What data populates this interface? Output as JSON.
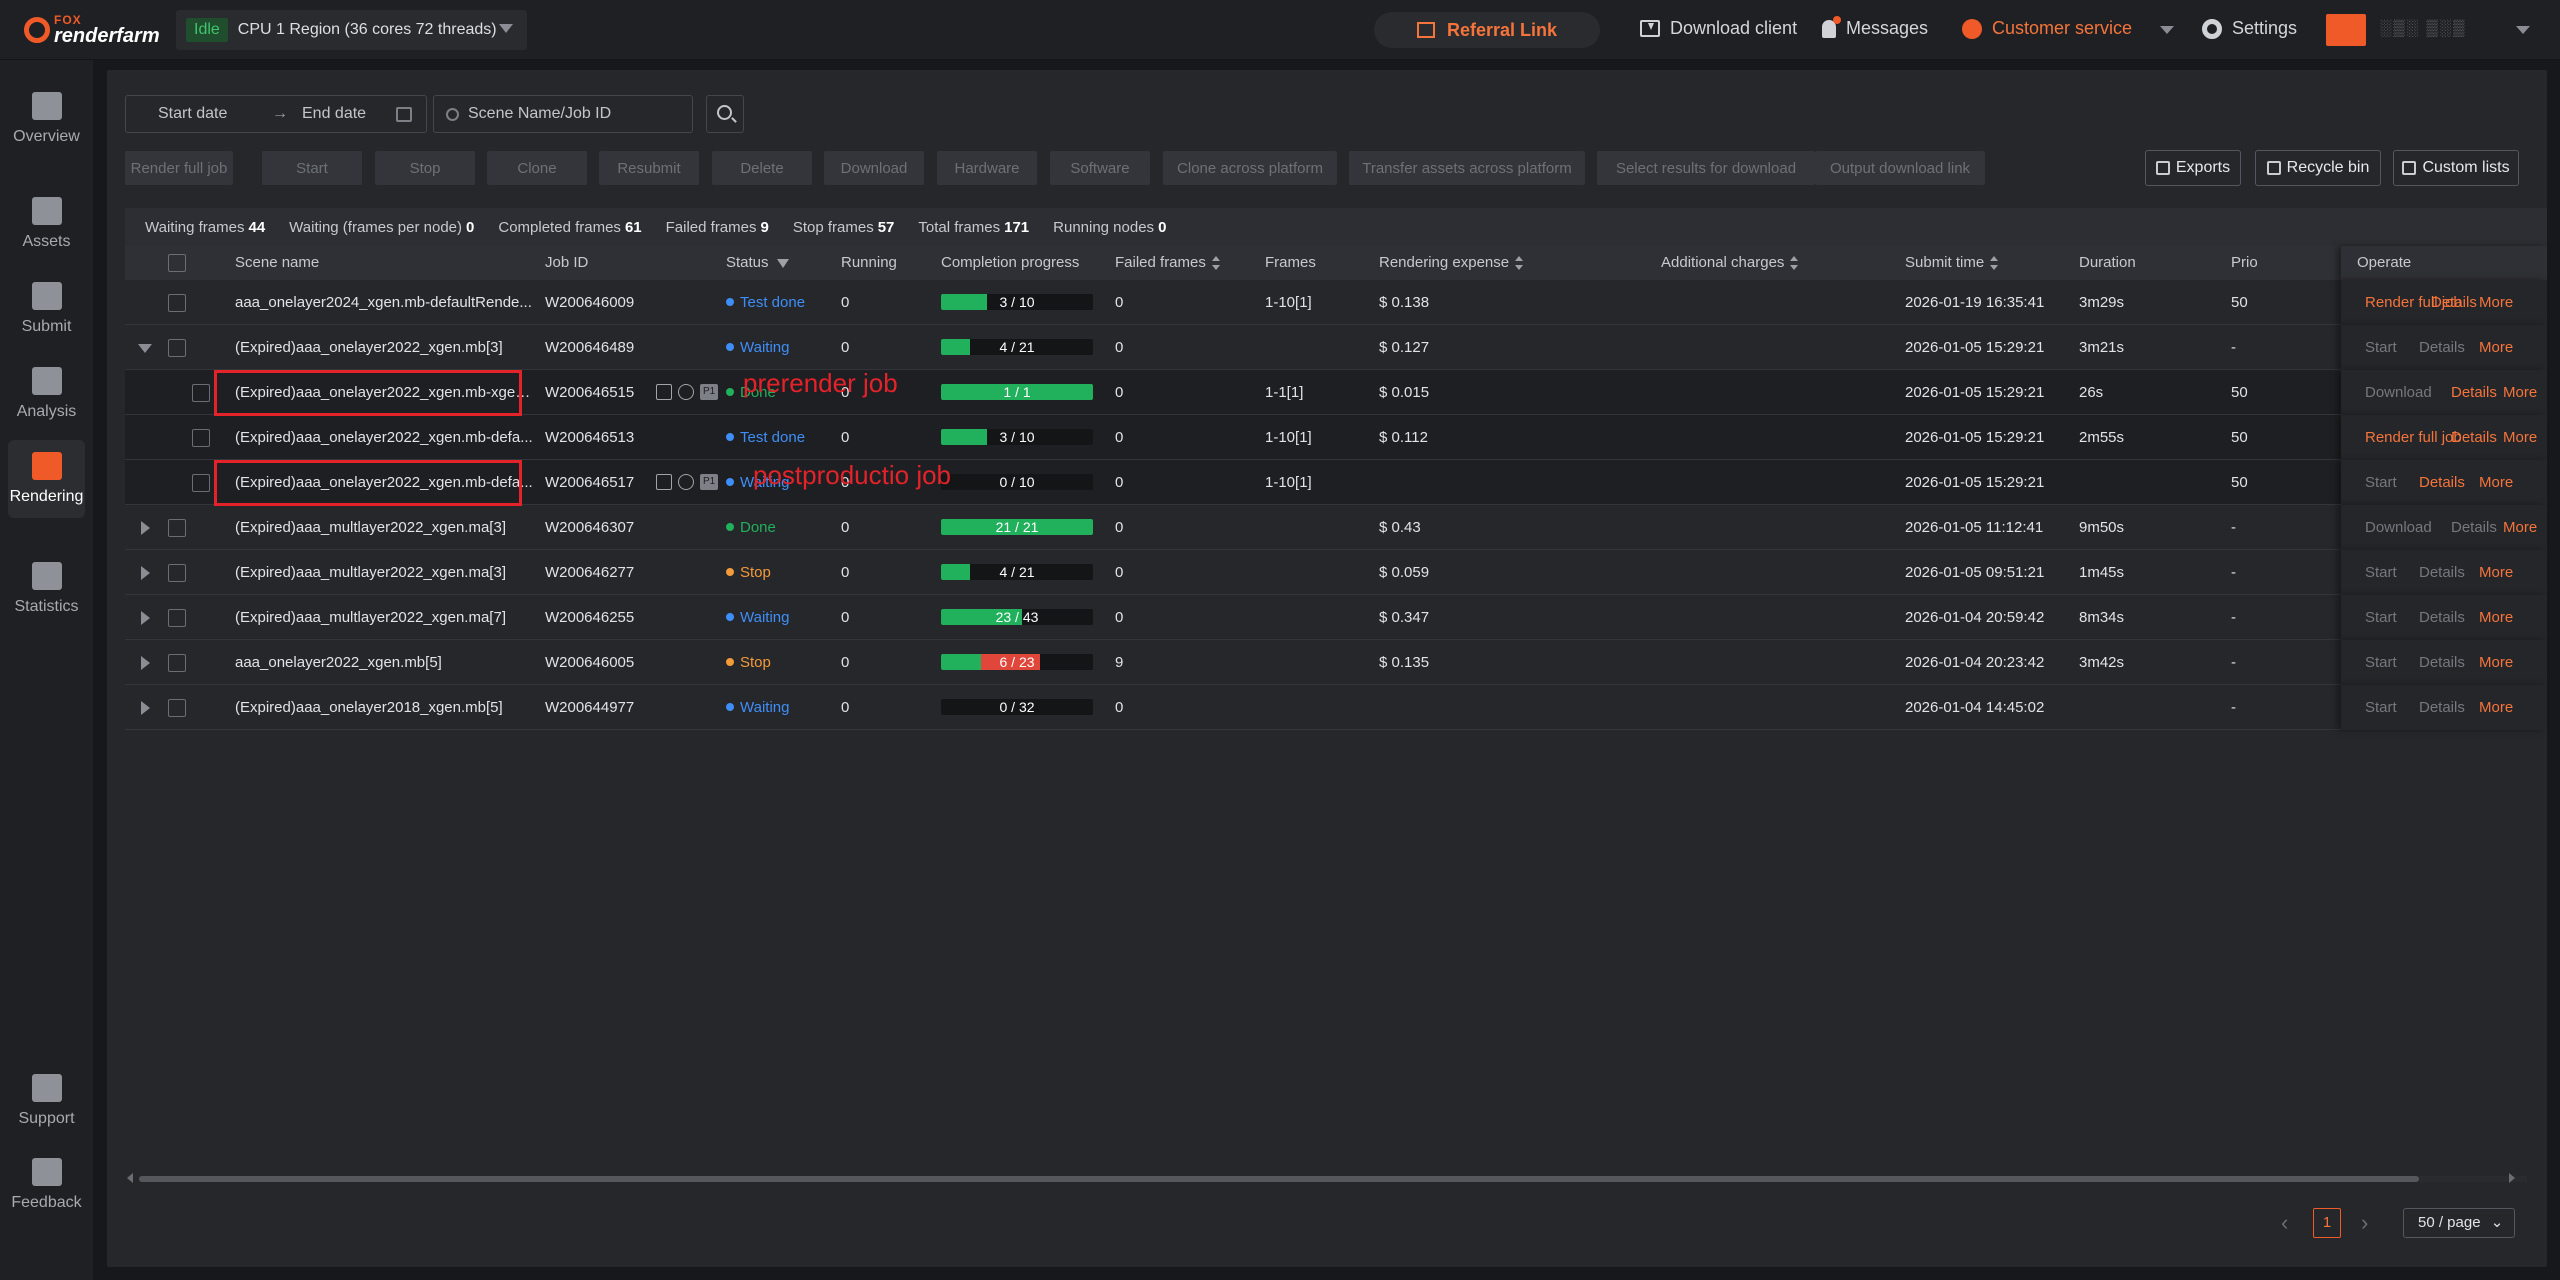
{
  "topbar": {
    "logo_small": "FOX",
    "logo_main": "renderfarm",
    "status_badge": "Idle",
    "region": "CPU 1 Region (36 cores 72 threads)",
    "referral": "Referral Link",
    "download_client": "Download client",
    "messages": "Messages",
    "customer_service": "Customer service",
    "settings": "Settings",
    "username": "░▒░ ▒░▒"
  },
  "sidebar": {
    "items": [
      {
        "label": "Overview",
        "icon": "pulse-icon"
      },
      {
        "label": "Assets",
        "icon": "folder-icon"
      },
      {
        "label": "Submit",
        "icon": "upload-icon"
      },
      {
        "label": "Analysis",
        "icon": "analysis-icon"
      },
      {
        "label": "Rendering",
        "icon": "film-icon"
      },
      {
        "label": "Statistics",
        "icon": "bar-chart-icon"
      }
    ],
    "bottom": [
      {
        "label": "Support",
        "icon": "document-icon"
      },
      {
        "label": "Feedback",
        "icon": "feedback-icon"
      }
    ]
  },
  "filters": {
    "start_date": "Start date",
    "end_date": "End date",
    "search_placeholder": "Scene Name/Job ID"
  },
  "toolbar": {
    "buttons": [
      "Render full job",
      "Start",
      "Stop",
      "Clone",
      "Resubmit",
      "Delete",
      "Download",
      "Hardware",
      "Software",
      "Clone across platform",
      "Transfer assets across platform",
      "Select results for download",
      "Output download link"
    ],
    "exports": "Exports",
    "recycle_bin": "Recycle bin",
    "custom_lists": "Custom lists"
  },
  "stats": [
    {
      "label": "Waiting frames",
      "value": "44"
    },
    {
      "label": "Waiting (frames per node)",
      "value": "0"
    },
    {
      "label": "Completed frames",
      "value": "61"
    },
    {
      "label": "Failed frames",
      "value": "9"
    },
    {
      "label": "Stop frames",
      "value": "57"
    },
    {
      "label": "Total frames",
      "value": "171"
    },
    {
      "label": "Running nodes",
      "value": "0"
    }
  ],
  "columns": [
    "Scene name",
    "Job ID",
    "Status",
    "Running",
    "Completion progress",
    "Failed frames",
    "Frames",
    "Rendering expense",
    "Additional charges",
    "Submit time",
    "Duration",
    "Prio",
    "Operate"
  ],
  "rows": [
    {
      "scene": "aaa_onelayer2024_xgen.mb-defaultRende...",
      "job": "W200646009",
      "status": "Test done",
      "running": "0",
      "progress": "3 / 10",
      "failed": "0",
      "frames": "1-10[1]",
      "expense": "$ 0.138",
      "submit": "2026-01-19 16:35:41",
      "duration": "3m29s",
      "prio": "50",
      "ops": [
        "Render full job",
        "Details",
        "More"
      ]
    },
    {
      "scene": "(Expired)aaa_onelayer2022_xgen.mb[3]",
      "job": "W200646489",
      "status": "Waiting",
      "running": "0",
      "progress": "4 / 21",
      "failed": "0",
      "frames": "",
      "expense": "$ 0.127",
      "submit": "2026-01-05 15:29:21",
      "duration": "3m21s",
      "prio": "-",
      "ops": [
        "Start",
        "Details",
        "More"
      ]
    },
    {
      "scene": "(Expired)aaa_onelayer2022_xgen.mb-xgen...",
      "job": "W200646515",
      "status": "Done",
      "running": "0",
      "progress": "1 / 1",
      "failed": "0",
      "frames": "1-1[1]",
      "expense": "$ 0.015",
      "submit": "2026-01-05 15:29:21",
      "duration": "26s",
      "prio": "50",
      "ops": [
        "Download",
        "Details",
        "More"
      ]
    },
    {
      "scene": "(Expired)aaa_onelayer2022_xgen.mb-defa...",
      "job": "W200646513",
      "status": "Test done",
      "running": "0",
      "progress": "3 / 10",
      "failed": "0",
      "frames": "1-10[1]",
      "expense": "$ 0.112",
      "submit": "2026-01-05 15:29:21",
      "duration": "2m55s",
      "prio": "50",
      "ops": [
        "Render full job",
        "Details",
        "More"
      ]
    },
    {
      "scene": "(Expired)aaa_onelayer2022_xgen.mb-defa...",
      "job": "W200646517",
      "status": "Waiting",
      "running": "0",
      "progress": "0 / 10",
      "failed": "0",
      "frames": "1-10[1]",
      "expense": "",
      "submit": "2026-01-05 15:29:21",
      "duration": "",
      "prio": "50",
      "ops": [
        "Start",
        "Details",
        "More"
      ]
    },
    {
      "scene": "(Expired)aaa_multlayer2022_xgen.ma[3]",
      "job": "W200646307",
      "status": "Done",
      "running": "0",
      "progress": "21 / 21",
      "failed": "0",
      "frames": "",
      "expense": "$ 0.43",
      "submit": "2026-01-05 11:12:41",
      "duration": "9m50s",
      "prio": "-",
      "ops": [
        "Download",
        "Details",
        "More"
      ]
    },
    {
      "scene": "(Expired)aaa_multlayer2022_xgen.ma[3]",
      "job": "W200646277",
      "status": "Stop",
      "running": "0",
      "progress": "4 / 21",
      "failed": "0",
      "frames": "",
      "expense": "$ 0.059",
      "submit": "2026-01-05 09:51:21",
      "duration": "1m45s",
      "prio": "-",
      "ops": [
        "Start",
        "Details",
        "More"
      ]
    },
    {
      "scene": "(Expired)aaa_multlayer2022_xgen.ma[7]",
      "job": "W200646255",
      "status": "Waiting",
      "running": "0",
      "progress": "23 / 43",
      "failed": "0",
      "frames": "",
      "expense": "$ 0.347",
      "submit": "2026-01-04 20:59:42",
      "duration": "8m34s",
      "prio": "-",
      "ops": [
        "Start",
        "Details",
        "More"
      ]
    },
    {
      "scene": "aaa_onelayer2022_xgen.mb[5]",
      "job": "W200646005",
      "status": "Stop",
      "running": "0",
      "progress": "6 / 23",
      "failed": "9",
      "frames": "",
      "expense": "$ 0.135",
      "submit": "2026-01-04 20:23:42",
      "duration": "3m42s",
      "prio": "-",
      "ops": [
        "Start",
        "Details",
        "More"
      ]
    },
    {
      "scene": "(Expired)aaa_onelayer2018_xgen.mb[5]",
      "job": "W200644977",
      "status": "Waiting",
      "running": "0",
      "progress": "0 / 32",
      "failed": "0",
      "frames": "",
      "expense": "",
      "submit": "2026-01-04 14:45:02",
      "duration": "",
      "prio": "-",
      "ops": [
        "Start",
        "Details",
        "More"
      ]
    }
  ],
  "annotations": {
    "prerender": "prerender job",
    "postproduction": "postproductio job"
  },
  "pagination": {
    "current_page": "1",
    "page_size": "50 / page"
  },
  "colors": {
    "accent": "#f05a28",
    "done": "#21b05b",
    "waiting": "#3e8ef7",
    "stop": "#f39a3a",
    "annotation": "#e3222a"
  }
}
